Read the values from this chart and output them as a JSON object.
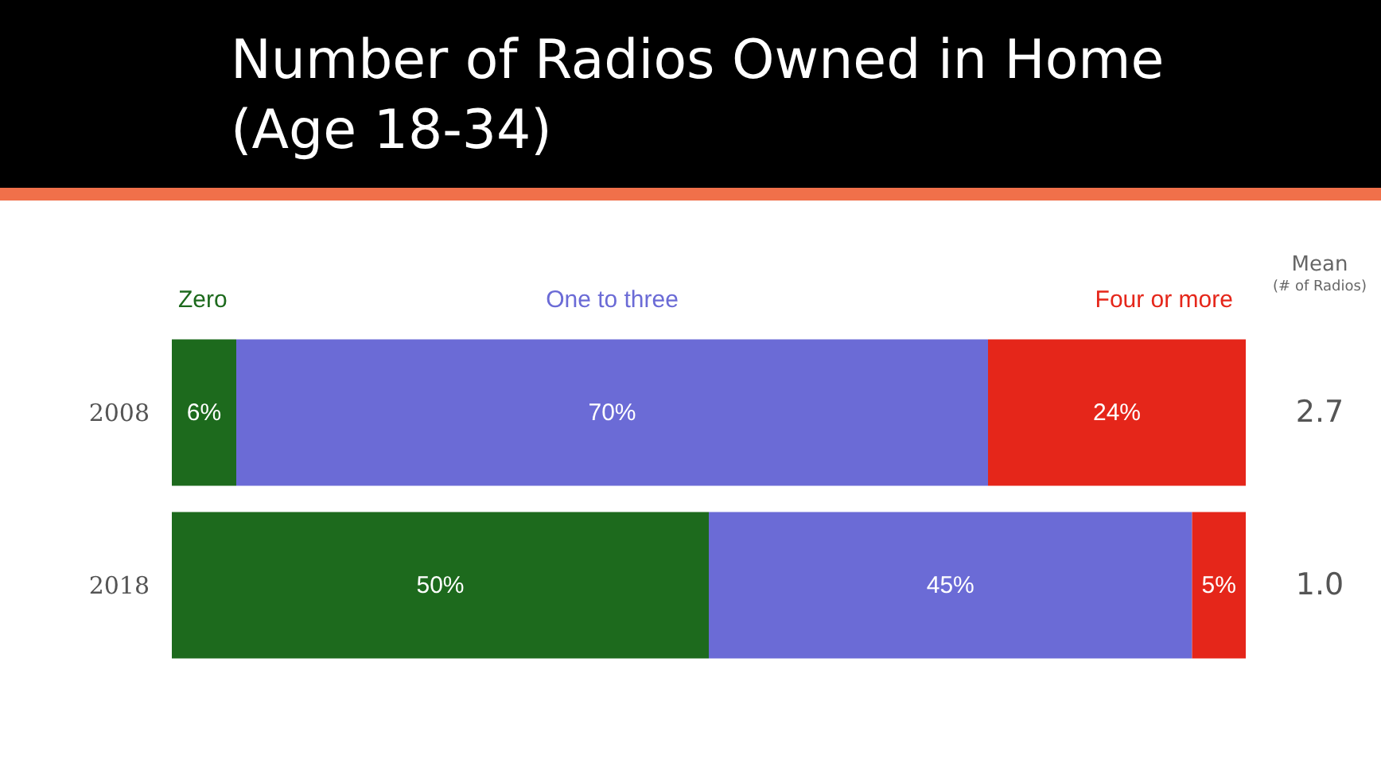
{
  "chart_data": {
    "type": "bar",
    "orientation": "horizontal",
    "stacked": true,
    "title": "Number of Radios Owned in Home (Age 18-34)",
    "categories": [
      "2008",
      "2018"
    ],
    "series": [
      {
        "name": "Zero",
        "color": "#1d6a1d",
        "values": [
          6,
          50
        ],
        "value_labels": [
          "6%",
          "50%"
        ]
      },
      {
        "name": "One to three",
        "color": "#6b6bd6",
        "values": [
          70,
          45
        ],
        "value_labels": [
          "70%",
          "45%"
        ]
      },
      {
        "name": "Four or more",
        "color": "#e5261a",
        "values": [
          24,
          5
        ],
        "value_labels": [
          "24%",
          "5%"
        ]
      }
    ],
    "xlim": [
      0,
      100
    ],
    "tick_labels": "y",
    "legend": "top",
    "grid": false,
    "annotations": [
      "Mean",
      "(# of Radios)",
      "2.7",
      "1.0"
    ]
  }
}
